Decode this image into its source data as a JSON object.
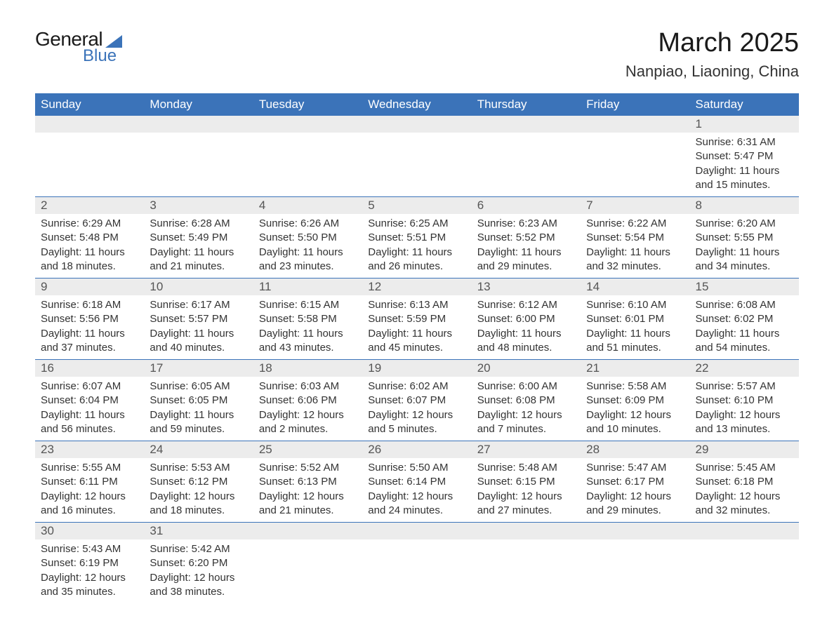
{
  "brand": {
    "line1": "General",
    "line2": "Blue",
    "color": "#3b73b9"
  },
  "title": {
    "month": "March 2025",
    "location": "Nanpiao, Liaoning, China"
  },
  "styling": {
    "header_bg": "#3b73b9",
    "header_text": "#ffffff",
    "daynum_bg": "#ececec",
    "row_border": "#3b73b9",
    "body_text": "#333333",
    "page_bg": "#ffffff",
    "month_fontsize": 38,
    "location_fontsize": 22,
    "header_fontsize": 17,
    "cell_fontsize": 15
  },
  "daysOfWeek": [
    "Sunday",
    "Monday",
    "Tuesday",
    "Wednesday",
    "Thursday",
    "Friday",
    "Saturday"
  ],
  "weeks": [
    [
      null,
      null,
      null,
      null,
      null,
      null,
      {
        "n": "1",
        "sr": "Sunrise: 6:31 AM",
        "ss": "Sunset: 5:47 PM",
        "dl": "Daylight: 11 hours and 15 minutes."
      }
    ],
    [
      {
        "n": "2",
        "sr": "Sunrise: 6:29 AM",
        "ss": "Sunset: 5:48 PM",
        "dl": "Daylight: 11 hours and 18 minutes."
      },
      {
        "n": "3",
        "sr": "Sunrise: 6:28 AM",
        "ss": "Sunset: 5:49 PM",
        "dl": "Daylight: 11 hours and 21 minutes."
      },
      {
        "n": "4",
        "sr": "Sunrise: 6:26 AM",
        "ss": "Sunset: 5:50 PM",
        "dl": "Daylight: 11 hours and 23 minutes."
      },
      {
        "n": "5",
        "sr": "Sunrise: 6:25 AM",
        "ss": "Sunset: 5:51 PM",
        "dl": "Daylight: 11 hours and 26 minutes."
      },
      {
        "n": "6",
        "sr": "Sunrise: 6:23 AM",
        "ss": "Sunset: 5:52 PM",
        "dl": "Daylight: 11 hours and 29 minutes."
      },
      {
        "n": "7",
        "sr": "Sunrise: 6:22 AM",
        "ss": "Sunset: 5:54 PM",
        "dl": "Daylight: 11 hours and 32 minutes."
      },
      {
        "n": "8",
        "sr": "Sunrise: 6:20 AM",
        "ss": "Sunset: 5:55 PM",
        "dl": "Daylight: 11 hours and 34 minutes."
      }
    ],
    [
      {
        "n": "9",
        "sr": "Sunrise: 6:18 AM",
        "ss": "Sunset: 5:56 PM",
        "dl": "Daylight: 11 hours and 37 minutes."
      },
      {
        "n": "10",
        "sr": "Sunrise: 6:17 AM",
        "ss": "Sunset: 5:57 PM",
        "dl": "Daylight: 11 hours and 40 minutes."
      },
      {
        "n": "11",
        "sr": "Sunrise: 6:15 AM",
        "ss": "Sunset: 5:58 PM",
        "dl": "Daylight: 11 hours and 43 minutes."
      },
      {
        "n": "12",
        "sr": "Sunrise: 6:13 AM",
        "ss": "Sunset: 5:59 PM",
        "dl": "Daylight: 11 hours and 45 minutes."
      },
      {
        "n": "13",
        "sr": "Sunrise: 6:12 AM",
        "ss": "Sunset: 6:00 PM",
        "dl": "Daylight: 11 hours and 48 minutes."
      },
      {
        "n": "14",
        "sr": "Sunrise: 6:10 AM",
        "ss": "Sunset: 6:01 PM",
        "dl": "Daylight: 11 hours and 51 minutes."
      },
      {
        "n": "15",
        "sr": "Sunrise: 6:08 AM",
        "ss": "Sunset: 6:02 PM",
        "dl": "Daylight: 11 hours and 54 minutes."
      }
    ],
    [
      {
        "n": "16",
        "sr": "Sunrise: 6:07 AM",
        "ss": "Sunset: 6:04 PM",
        "dl": "Daylight: 11 hours and 56 minutes."
      },
      {
        "n": "17",
        "sr": "Sunrise: 6:05 AM",
        "ss": "Sunset: 6:05 PM",
        "dl": "Daylight: 11 hours and 59 minutes."
      },
      {
        "n": "18",
        "sr": "Sunrise: 6:03 AM",
        "ss": "Sunset: 6:06 PM",
        "dl": "Daylight: 12 hours and 2 minutes."
      },
      {
        "n": "19",
        "sr": "Sunrise: 6:02 AM",
        "ss": "Sunset: 6:07 PM",
        "dl": "Daylight: 12 hours and 5 minutes."
      },
      {
        "n": "20",
        "sr": "Sunrise: 6:00 AM",
        "ss": "Sunset: 6:08 PM",
        "dl": "Daylight: 12 hours and 7 minutes."
      },
      {
        "n": "21",
        "sr": "Sunrise: 5:58 AM",
        "ss": "Sunset: 6:09 PM",
        "dl": "Daylight: 12 hours and 10 minutes."
      },
      {
        "n": "22",
        "sr": "Sunrise: 5:57 AM",
        "ss": "Sunset: 6:10 PM",
        "dl": "Daylight: 12 hours and 13 minutes."
      }
    ],
    [
      {
        "n": "23",
        "sr": "Sunrise: 5:55 AM",
        "ss": "Sunset: 6:11 PM",
        "dl": "Daylight: 12 hours and 16 minutes."
      },
      {
        "n": "24",
        "sr": "Sunrise: 5:53 AM",
        "ss": "Sunset: 6:12 PM",
        "dl": "Daylight: 12 hours and 18 minutes."
      },
      {
        "n": "25",
        "sr": "Sunrise: 5:52 AM",
        "ss": "Sunset: 6:13 PM",
        "dl": "Daylight: 12 hours and 21 minutes."
      },
      {
        "n": "26",
        "sr": "Sunrise: 5:50 AM",
        "ss": "Sunset: 6:14 PM",
        "dl": "Daylight: 12 hours and 24 minutes."
      },
      {
        "n": "27",
        "sr": "Sunrise: 5:48 AM",
        "ss": "Sunset: 6:15 PM",
        "dl": "Daylight: 12 hours and 27 minutes."
      },
      {
        "n": "28",
        "sr": "Sunrise: 5:47 AM",
        "ss": "Sunset: 6:17 PM",
        "dl": "Daylight: 12 hours and 29 minutes."
      },
      {
        "n": "29",
        "sr": "Sunrise: 5:45 AM",
        "ss": "Sunset: 6:18 PM",
        "dl": "Daylight: 12 hours and 32 minutes."
      }
    ],
    [
      {
        "n": "30",
        "sr": "Sunrise: 5:43 AM",
        "ss": "Sunset: 6:19 PM",
        "dl": "Daylight: 12 hours and 35 minutes."
      },
      {
        "n": "31",
        "sr": "Sunrise: 5:42 AM",
        "ss": "Sunset: 6:20 PM",
        "dl": "Daylight: 12 hours and 38 minutes."
      },
      null,
      null,
      null,
      null,
      null
    ]
  ]
}
